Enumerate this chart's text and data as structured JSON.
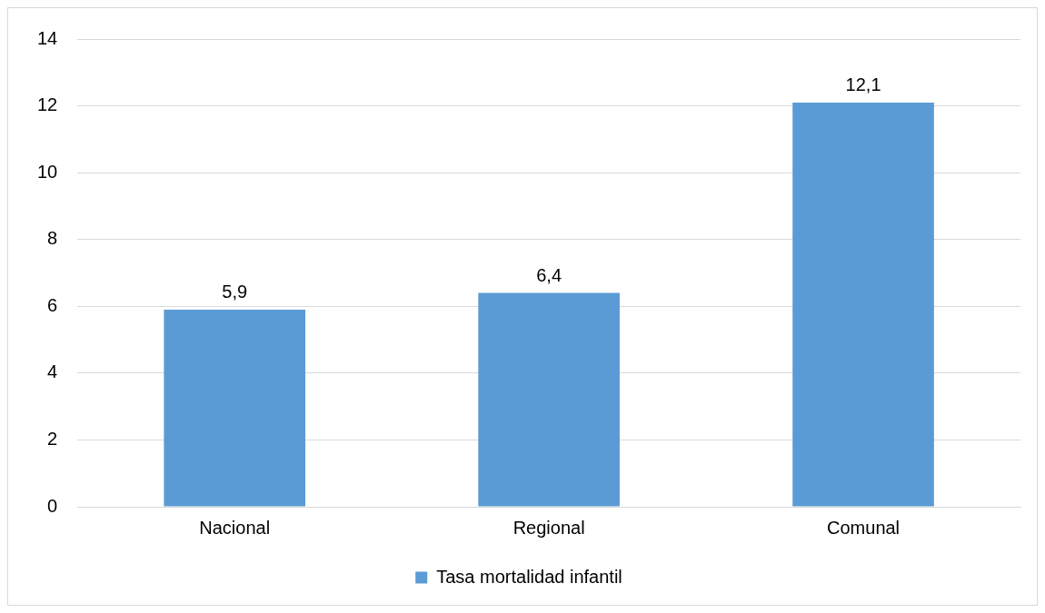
{
  "chart_data": {
    "type": "bar",
    "categories": [
      "Nacional",
      "Regional",
      "Comunal"
    ],
    "series": [
      {
        "name": "Tasa mortalidad infantil",
        "color": "#5b9bd5",
        "values": [
          5.9,
          6.4,
          12.1
        ],
        "value_labels": [
          "5,9",
          "6,4",
          "12,1"
        ]
      }
    ],
    "ylim": [
      0,
      14
    ],
    "yticks": [
      0,
      2,
      4,
      6,
      8,
      10,
      12,
      14
    ],
    "grid": "y",
    "legend": "bottom"
  }
}
